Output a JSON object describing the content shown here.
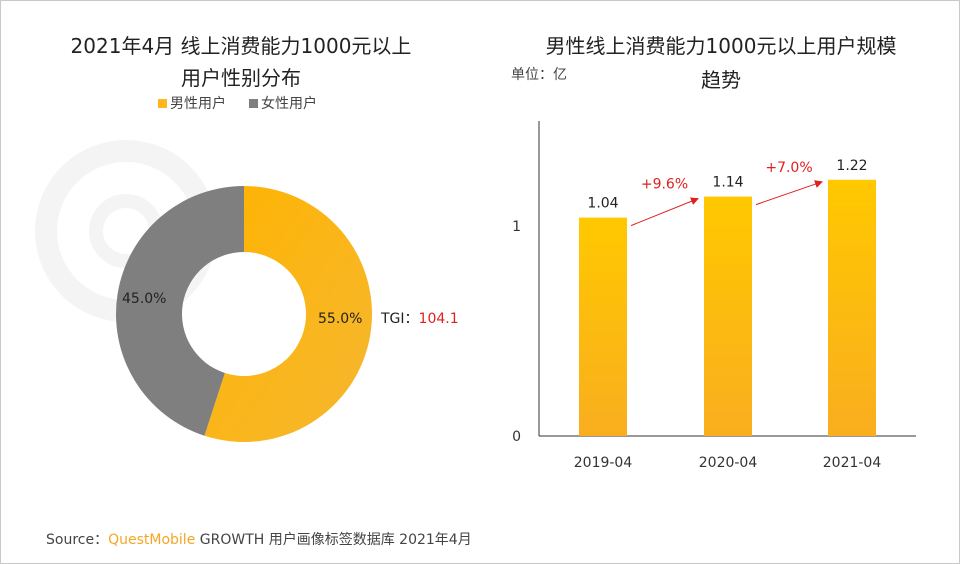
{
  "watermark": "QUESTMOBILE",
  "source": {
    "prefix": "Source：",
    "brand": "QuestMobile",
    "rest": "GROWTH 用户画像标签数据库 2021年4月"
  },
  "chart_data": [
    {
      "type": "pie",
      "donut": true,
      "title_line1": "2021年4月 线上消费能力1000元以上",
      "title_line2": "用户性别分布",
      "legend": "top",
      "slices": [
        {
          "name": "男性用户",
          "value": 55.0,
          "label": "55.0%",
          "color": "#FFB81C"
        },
        {
          "name": "女性用户",
          "value": 45.0,
          "label": "45.0%",
          "color": "#7F7F7F"
        }
      ],
      "annotation": {
        "label": "TGI：",
        "value": "104.1",
        "value_color": "#E02020"
      }
    },
    {
      "type": "bar",
      "title_line1": "男性线上消费能力1000元以上用户规模",
      "title_line2": "趋势",
      "unit": "单位：亿",
      "categories": [
        "2019-04",
        "2020-04",
        "2021-04"
      ],
      "values": [
        1.04,
        1.14,
        1.22
      ],
      "labels": [
        "1.04",
        "1.14",
        "1.22"
      ],
      "yticks": [
        "0",
        "1"
      ],
      "ylim": [
        0,
        1.4
      ],
      "color": "#FFC000",
      "growth": [
        "+9.6%",
        "+7.0%"
      ],
      "growth_color": "#E02020"
    }
  ]
}
